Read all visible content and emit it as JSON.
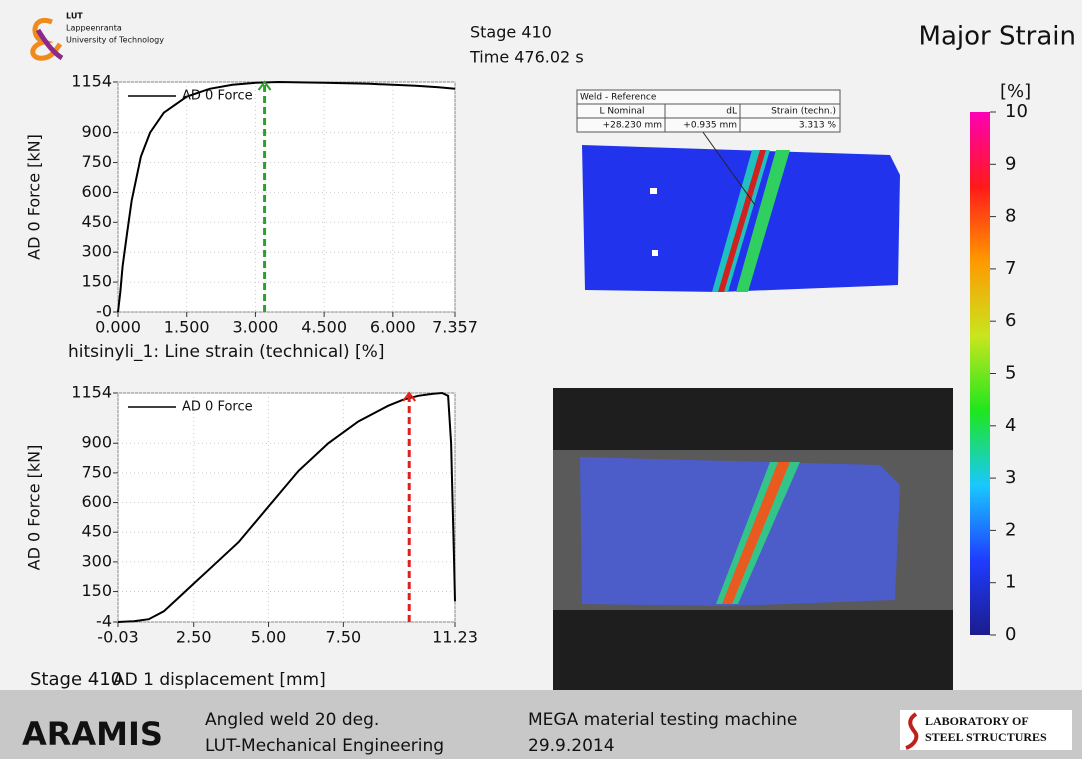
{
  "header": {
    "logo_lines": [
      "LUT",
      "Lappeenranta",
      "University of Technology"
    ],
    "stage": "Stage 410",
    "time": "Time  476.02 s",
    "title": "Major Strain"
  },
  "chart_data": [
    {
      "type": "line",
      "x_label": "hitsinyli_1: Line strain (technical) [%]",
      "y_label": "AD 0 Force [kN]",
      "xlim": [
        0,
        7.357
      ],
      "ylim": [
        0,
        1154
      ],
      "xticks": [
        {
          "value": 0,
          "label": "0.000"
        },
        {
          "value": 1.5,
          "label": "1.500"
        },
        {
          "value": 3,
          "label": "3.000"
        },
        {
          "value": 4.5,
          "label": "4.500"
        },
        {
          "value": 6,
          "label": "6.000"
        },
        7.357
      ],
      "yticks": [
        {
          "value": 0,
          "label": "-0"
        },
        150,
        300,
        450,
        600,
        750,
        900,
        1154
      ],
      "grid": true,
      "series": [
        {
          "name": "AD 0 Force",
          "color": "#000000",
          "x": [
            0,
            0.05,
            0.1,
            0.2,
            0.3,
            0.5,
            0.7,
            1.0,
            1.5,
            2.0,
            2.5,
            3.0,
            3.5,
            4.0,
            4.5,
            5.0,
            5.5,
            6.0,
            6.5,
            7.0,
            7.357
          ],
          "values": [
            0,
            100,
            230,
            400,
            560,
            780,
            900,
            1000,
            1080,
            1120,
            1140,
            1150,
            1154,
            1152,
            1150,
            1148,
            1145,
            1140,
            1135,
            1128,
            1120
          ]
        }
      ],
      "marker_x": 3.2,
      "marker_color": "#2ca02c"
    },
    {
      "type": "line",
      "x_label": "AD 1 displacement [mm]",
      "y_label": "AD 0 Force [kN]",
      "xlim": [
        -0.03,
        11.23
      ],
      "ylim": [
        -4,
        1154
      ],
      "xticks": [
        {
          "value": -0.03,
          "label": "-0.03"
        },
        {
          "value": 2.5,
          "label": "2.50"
        },
        {
          "value": 5,
          "label": "5.00"
        },
        {
          "value": 7.5,
          "label": "7.50"
        },
        11.23
      ],
      "yticks": [
        -4,
        150,
        300,
        450,
        600,
        750,
        900,
        1154
      ],
      "grid": true,
      "series": [
        {
          "name": "AD 0 Force",
          "color": "#000000",
          "x": [
            -0.03,
            0.5,
            1,
            1.5,
            2,
            2.5,
            3,
            4,
            5,
            6,
            7,
            8,
            9,
            9.5,
            10,
            10.5,
            10.8,
            11,
            11.1,
            11.2,
            11.23
          ],
          "values": [
            -4,
            0,
            10,
            50,
            120,
            190,
            260,
            400,
            580,
            760,
            900,
            1010,
            1090,
            1120,
            1140,
            1150,
            1154,
            1140,
            900,
            300,
            100
          ]
        }
      ],
      "marker_x": 9.7,
      "marker_color": "#e0201b"
    }
  ],
  "stage_label": "Stage 410",
  "inspection": {
    "title": "Weld - Reference",
    "headers": [
      "L Nominal",
      "dL",
      "Strain (techn.)"
    ],
    "row": [
      "+28.230 mm",
      "+0.935 mm",
      "3.313 %"
    ]
  },
  "colorbar": {
    "unit": "[%]",
    "lim": [
      0,
      10
    ],
    "ticks": [
      0,
      1,
      2,
      3,
      4,
      5,
      6,
      7,
      8,
      9,
      10
    ],
    "colors": [
      "#1c1c8c",
      "#1f3cff",
      "#19c8ff",
      "#1ee61e",
      "#c8e61e",
      "#ff9a00",
      "#ff1a1a",
      "#ff00b4"
    ]
  },
  "footer": {
    "brand": "ARAMIS",
    "line1": "Angled weld 20 deg.",
    "line2": "LUT-Mechanical Engineering",
    "line3": "MEGA material testing machine",
    "line4": "29.9.2014",
    "lab1": "LABORATORY OF",
    "lab2": "STEEL STRUCTURES"
  }
}
